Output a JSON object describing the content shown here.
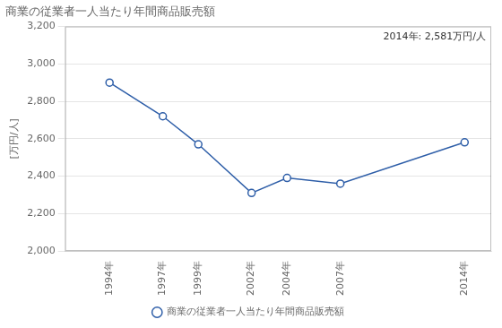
{
  "chart_data": {
    "type": "line",
    "title": "商業の従業者一人当たり年間商品販売額",
    "ylabel": "[万円/人]",
    "annotation": "2014年: 2,581万円/人",
    "x": [
      1994,
      1997,
      1999,
      2002,
      2004,
      2007,
      2014
    ],
    "xlim": [
      1991.5,
      2015.5
    ],
    "xticks": [
      {
        "value": 1994,
        "label": "1994年"
      },
      {
        "value": 1997,
        "label": "1997年"
      },
      {
        "value": 1999,
        "label": "1999年"
      },
      {
        "value": 2002,
        "label": "2002年"
      },
      {
        "value": 2004,
        "label": "2004年"
      },
      {
        "value": 2007,
        "label": "2007年"
      },
      {
        "value": 2014,
        "label": "2014年"
      }
    ],
    "series": [
      {
        "name": "商業の従業者一人当たり年間商品販売額",
        "color": "#2E5EA8",
        "marker": "circle",
        "values": [
          2900,
          2720,
          2570,
          2310,
          2390,
          2360,
          2581
        ]
      }
    ],
    "ylim": [
      2000,
      3200
    ],
    "yticks": [
      {
        "value": 2000,
        "label": "2,000"
      },
      {
        "value": 2200,
        "label": "2,200"
      },
      {
        "value": 2400,
        "label": "2,400"
      },
      {
        "value": 2600,
        "label": "2,600"
      },
      {
        "value": 2800,
        "label": "2,800"
      },
      {
        "value": 3000,
        "label": "3,000"
      },
      {
        "value": 3200,
        "label": "3,200"
      }
    ],
    "grid": true,
    "legend": "bottom"
  }
}
